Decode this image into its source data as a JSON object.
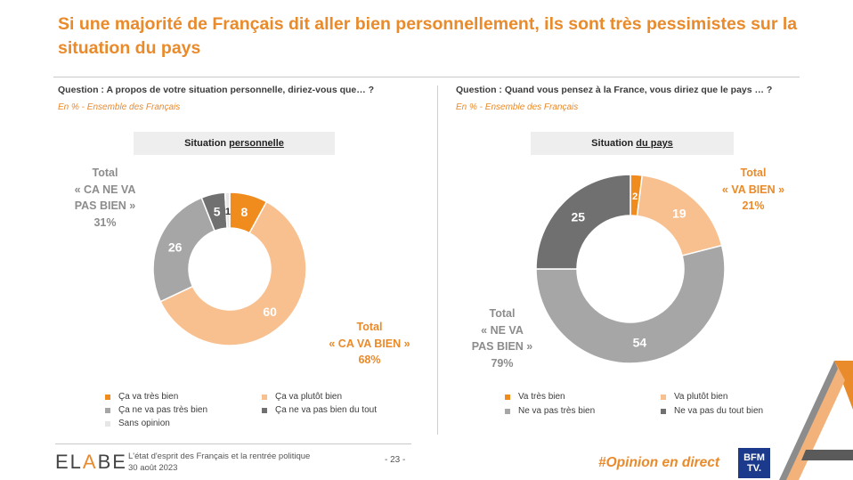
{
  "title": "Si une majorité de Français dit aller bien personnellement, ils sont très pessimistes sur la situation du pays",
  "left": {
    "question": "Question : A propos de votre situation personnelle, diriez-vous que… ?",
    "subtitle": "En % - Ensemble des Français",
    "chart_title_prefix": "Situation",
    "chart_title_underlined": "personnelle",
    "total_negative": {
      "l1": "Total",
      "l2": "« CA NE VA",
      "l3": "PAS BIEN »",
      "value": "31%"
    },
    "total_positive": {
      "l1": "Total",
      "l2": "« CA VA BIEN »",
      "value": "68%"
    },
    "legend": [
      "Ça va très bien",
      "Ça va plutôt bien",
      "Ça ne va pas très bien",
      "Ça ne va pas bien du tout",
      "Sans opinion"
    ]
  },
  "right": {
    "question": "Question : Quand vous pensez à la France, vous diriez que le pays … ?",
    "subtitle": "En % - Ensemble des Français",
    "chart_title_prefix": "Situation",
    "chart_title_underlined": "du pays",
    "total_positive": {
      "l1": "Total",
      "l2": "« VA BIEN »",
      "value": "21%"
    },
    "total_negative": {
      "l1": "Total",
      "l2": "« NE VA",
      "l3": "PAS BIEN »",
      "value": "79%"
    },
    "legend": [
      "Va très bien",
      "Va plutôt bien",
      "Ne va pas très bien",
      "Ne va pas du tout bien"
    ]
  },
  "colors": {
    "dark_orange": "#f08c1e",
    "light_orange": "#f8c08f",
    "light_grey": "#a6a6a6",
    "dark_grey": "#707070",
    "very_light": "#e6e6e6"
  },
  "chart_data": [
    {
      "type": "pie",
      "title": "Situation personnelle",
      "categories": [
        "Ça va très bien",
        "Ça va plutôt bien",
        "Ça ne va pas très bien",
        "Ça ne va pas bien du tout",
        "Sans opinion"
      ],
      "values": [
        8,
        60,
        26,
        5,
        1
      ],
      "unit": "%"
    },
    {
      "type": "pie",
      "title": "Situation du pays",
      "categories": [
        "Va très bien",
        "Va plutôt bien",
        "Ne va pas très bien",
        "Ne va pas du tout bien"
      ],
      "values": [
        2,
        19,
        54,
        25
      ],
      "unit": "%"
    }
  ],
  "footer": {
    "logo_left": "EL",
    "logo_accent": "A",
    "logo_right": "BE",
    "line1": "L'état d'esprit des Français et la rentrée politique",
    "line2": "30 août 2023",
    "page": "- 23 -",
    "hashtag": "#Opinion en direct",
    "bfm_line1": "BFM",
    "bfm_line2": "TV."
  }
}
